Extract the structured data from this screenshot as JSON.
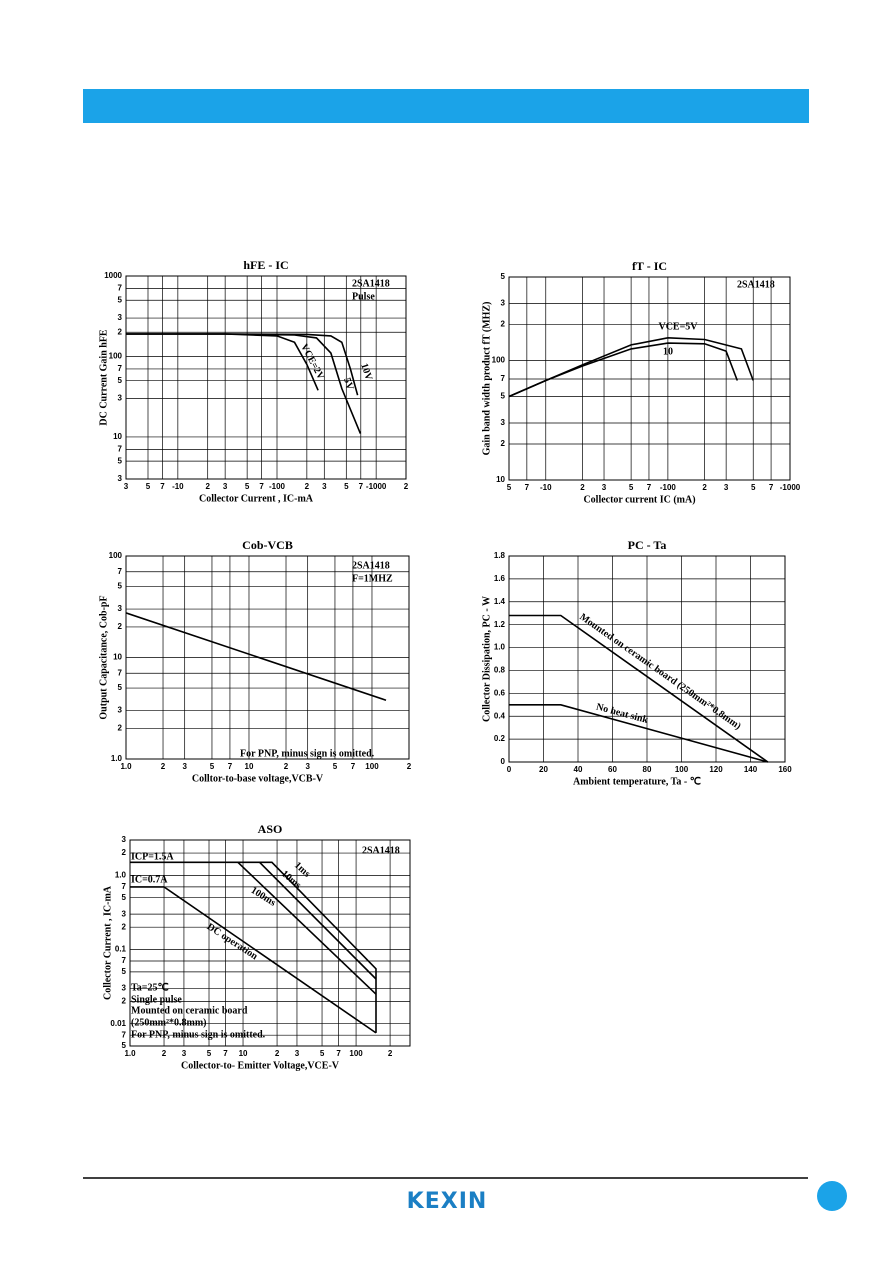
{
  "chart_data": [
    {
      "type": "line",
      "title": "hFE - IC",
      "xlabel": "Collector Current , IC-mA",
      "ylabel": "DC Current Gain hFE",
      "xscale": "log",
      "yscale": "log",
      "grid": true,
      "color": "#000000",
      "xlim": [
        3,
        2000
      ],
      "ylim": [
        3,
        1000
      ],
      "xticks": [
        3,
        5,
        7,
        {
          "value": 10,
          "label": "-10"
        },
        {
          "value": 20,
          "label": "2"
        },
        {
          "value": 30,
          "label": "3"
        },
        {
          "value": 50,
          "label": "5"
        },
        {
          "value": 70,
          "label": "7"
        },
        {
          "value": 100,
          "label": "-100"
        },
        {
          "value": 200,
          "label": "2"
        },
        {
          "value": 300,
          "label": "3"
        },
        {
          "value": 500,
          "label": "5"
        },
        {
          "value": 700,
          "label": "7"
        },
        {
          "value": 1000,
          "label": "-1000"
        },
        {
          "value": 2000,
          "label": "2"
        }
      ],
      "yticks": [
        3,
        5,
        7,
        10,
        {
          "value": 30,
          "label": "3"
        },
        {
          "value": 50,
          "label": "5"
        },
        {
          "value": 70,
          "label": "7"
        },
        100,
        {
          "value": 200,
          "label": "2"
        },
        {
          "value": 300,
          "label": "3"
        },
        {
          "value": 500,
          "label": "5"
        },
        {
          "value": 700,
          "label": "7"
        },
        1000
      ],
      "annotations": [
        "2SA1418",
        "Pulse"
      ],
      "series": [
        {
          "name": "VCE=2V",
          "x": [
            3,
            30,
            100,
            150,
            200,
            260
          ],
          "values": [
            190,
            190,
            180,
            150,
            80,
            38
          ]
        },
        {
          "name": "5V",
          "x": [
            3,
            30,
            150,
            250,
            350,
            450,
            693
          ],
          "values": [
            190,
            190,
            185,
            170,
            110,
            40,
            11
          ]
        },
        {
          "name": "10V",
          "x": [
            3,
            30,
            200,
            350,
            450,
            550,
            650
          ],
          "values": [
            190,
            190,
            188,
            180,
            150,
            70,
            33
          ]
        }
      ]
    },
    {
      "type": "line",
      "title": "fT - IC",
      "xlabel": "Collector current IC (mA)",
      "ylabel": "Gain band width product fT (MHZ)",
      "xscale": "log",
      "yscale": "log",
      "grid": true,
      "color": "#000000",
      "xlim": [
        5,
        1000
      ],
      "ylim": [
        10,
        500
      ],
      "xticks": [
        5,
        7,
        {
          "value": 10,
          "label": "-10"
        },
        {
          "value": 20,
          "label": "2"
        },
        {
          "value": 30,
          "label": "3"
        },
        {
          "value": 50,
          "label": "5"
        },
        {
          "value": 70,
          "label": "7"
        },
        {
          "value": 100,
          "label": "-100"
        },
        {
          "value": 200,
          "label": "2"
        },
        {
          "value": 300,
          "label": "3"
        },
        {
          "value": 500,
          "label": "5"
        },
        {
          "value": 700,
          "label": "7"
        },
        {
          "value": 1000,
          "label": "-1000"
        }
      ],
      "yticks": [
        10,
        {
          "value": 20,
          "label": "2"
        },
        {
          "value": 30,
          "label": "3"
        },
        {
          "value": 50,
          "label": "5"
        },
        {
          "value": 70,
          "label": "7"
        },
        100,
        {
          "value": 200,
          "label": "2"
        },
        {
          "value": 300,
          "label": "3"
        },
        {
          "value": 500,
          "label": "5"
        }
      ],
      "annotations": [
        "2SA1418"
      ],
      "series": [
        {
          "name": "VCE=5V",
          "x": [
            5,
            10,
            20,
            50,
            100,
            200,
            300,
            370
          ],
          "values": [
            50,
            68,
            90,
            125,
            140,
            138,
            120,
            68
          ]
        },
        {
          "name": "10",
          "x": [
            5,
            10,
            20,
            50,
            100,
            200,
            400,
            500
          ],
          "values": [
            50,
            68,
            92,
            135,
            155,
            150,
            125,
            68
          ]
        }
      ]
    },
    {
      "type": "line",
      "title": "Cob-VCB",
      "xlabel": "Colltor-to-base voltage,VCB-V",
      "ylabel": "Output Capacitance, Cob-pF",
      "xscale": "log",
      "yscale": "log",
      "grid": true,
      "color": "#000000",
      "xlim": [
        1,
        200
      ],
      "ylim": [
        1,
        100
      ],
      "xticks": [
        {
          "value": 1,
          "label": "1.0"
        },
        2,
        3,
        5,
        7,
        10,
        {
          "value": 20,
          "label": "2"
        },
        {
          "value": 30,
          "label": "3"
        },
        {
          "value": 50,
          "label": "5"
        },
        {
          "value": 70,
          "label": "7"
        },
        100,
        {
          "value": 200,
          "label": "2"
        }
      ],
      "yticks": [
        {
          "value": 1,
          "label": "1.0"
        },
        2,
        3,
        5,
        7,
        10,
        {
          "value": 20,
          "label": "2"
        },
        {
          "value": 30,
          "label": "3"
        },
        {
          "value": 50,
          "label": "5"
        },
        {
          "value": 70,
          "label": "7"
        },
        100
      ],
      "annotations": [
        "2SA1418",
        "F=1MHZ",
        "For PNP, minus sign is omitted."
      ],
      "series": [
        {
          "name": "Cob",
          "x": [
            1,
            130
          ],
          "values": [
            27.5,
            3.8
          ]
        }
      ]
    },
    {
      "type": "line",
      "title": "PC - Ta",
      "xlabel": "Ambient temperature,  Ta - ℃",
      "ylabel": "Collector Dissipation,  PC - W",
      "xscale": "linear",
      "yscale": "linear",
      "grid": true,
      "color": "#000000",
      "xlim": [
        0,
        160
      ],
      "ylim": [
        0,
        1.8
      ],
      "xticks": [
        0,
        20,
        40,
        60,
        80,
        100,
        120,
        140,
        160
      ],
      "yticks": [
        0,
        0.2,
        0.4,
        0.6,
        0.8,
        {
          "value": 1,
          "label": "1.0"
        },
        1.2,
        1.4,
        1.6,
        1.8
      ],
      "annotations": [],
      "series": [
        {
          "name": "Mounted on ceramic board (250mm²*0.8mm)",
          "x": [
            0,
            30,
            150
          ],
          "values": [
            1.28,
            1.28,
            0
          ]
        },
        {
          "name": "No heat sink",
          "x": [
            0,
            30,
            150
          ],
          "values": [
            0.5,
            0.5,
            0
          ]
        }
      ]
    },
    {
      "type": "line",
      "title": "ASO",
      "xlabel": "Collector-to- Emitter Voltage,VCE-V",
      "ylabel": "Collector Current , IC-mA",
      "xscale": "log",
      "yscale": "log",
      "grid": true,
      "color": "#000000",
      "xlim": [
        1,
        300
      ],
      "ylim": [
        0.005,
        3
      ],
      "xticks": [
        {
          "value": 1,
          "label": "1.0"
        },
        2,
        3,
        5,
        7,
        10,
        {
          "value": 20,
          "label": "2"
        },
        {
          "value": 30,
          "label": "3"
        },
        {
          "value": 50,
          "label": "5"
        },
        {
          "value": 70,
          "label": "7"
        },
        100,
        {
          "value": 200,
          "label": "2"
        }
      ],
      "yticks": [
        {
          "value": 0.005,
          "label": "5"
        },
        {
          "value": 0.007,
          "label": "7"
        },
        0.01,
        {
          "value": 0.02,
          "label": "2"
        },
        {
          "value": 0.03,
          "label": "3"
        },
        {
          "value": 0.05,
          "label": "5"
        },
        {
          "value": 0.07,
          "label": "7"
        },
        0.1,
        {
          "value": 0.2,
          "label": "2"
        },
        {
          "value": 0.3,
          "label": "3"
        },
        {
          "value": 0.5,
          "label": "5"
        },
        {
          "value": 0.7,
          "label": "7"
        },
        {
          "value": 1,
          "label": "1.0"
        },
        2,
        3
      ],
      "annotations": [
        "ICP=1.5A",
        "IC=0.7A",
        "2SA1418",
        "Ta=25℃",
        "Single pulse",
        "Mounted on ceramic board",
        "(250mm²*0.8mm)",
        "For PNP, minus sign is omitted."
      ],
      "series": [
        {
          "name": "1ms",
          "x": [
            1,
            18,
            150,
            150
          ],
          "values": [
            1.5,
            1.5,
            0.055,
            0.0075
          ]
        },
        {
          "name": "10ms",
          "x": [
            14,
            150
          ],
          "values": [
            1.5,
            0.04
          ]
        },
        {
          "name": "100ms",
          "x": [
            9,
            150
          ],
          "values": [
            1.5,
            0.025
          ]
        },
        {
          "name": "DC operation",
          "x": [
            1,
            2,
            150
          ],
          "values": [
            0.7,
            0.7,
            0.0075
          ]
        }
      ]
    }
  ],
  "footer": {
    "logo": "KEXIN"
  }
}
